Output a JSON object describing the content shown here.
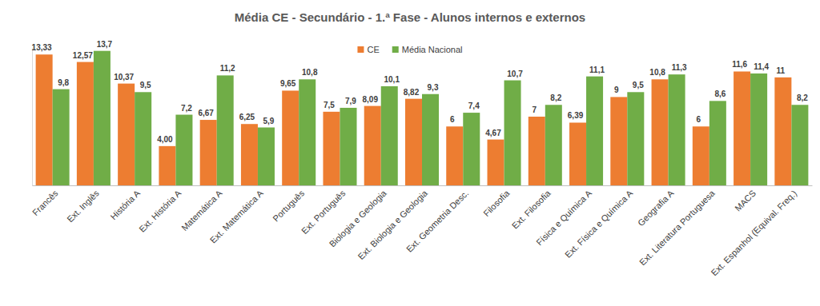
{
  "chart_data": {
    "type": "bar",
    "title": "Média CE - Secundário - 1.ª Fase - Alunos internos e externos",
    "categories": [
      "Francês",
      "Ext. Inglês",
      "História A",
      "Ext. História A",
      "Matemática A",
      "Ext. Matemática A",
      "Português",
      "Ext. Português",
      "Biologia e Geologia",
      "Ext. Biologia e Geologia",
      "Ext. Geometria Desc.",
      "Filosofia",
      "Ext. Filosofia",
      "Física e Química A",
      "Ext. Física e Química A",
      "Geografia A",
      "Ext. Literatura Portuguesa",
      "MACS",
      "Ext. Espanhol (Equival. Freq.)"
    ],
    "series": [
      {
        "name": "CE",
        "color": "#ED7D31",
        "values": [
          13.33,
          12.57,
          10.37,
          4.0,
          6.67,
          6.25,
          9.65,
          7.5,
          8.09,
          8.82,
          6,
          4.67,
          7,
          6.39,
          9,
          10.8,
          6,
          11.6,
          11
        ],
        "value_labels": [
          "13,33",
          "12,57",
          "10,37",
          "4,00",
          "6,67",
          "6,25",
          "9,65",
          "7,5",
          "8,09",
          "8,82",
          "6",
          "4,67",
          "7",
          "6,39",
          "9",
          "10,8",
          "6",
          "11,6",
          "11"
        ]
      },
      {
        "name": "Média Nacional",
        "color": "#70AD47",
        "values": [
          9.8,
          13.7,
          9.5,
          7.2,
          11.2,
          5.9,
          10.8,
          7.9,
          10.1,
          9.3,
          7.4,
          10.7,
          8.2,
          11.1,
          9.5,
          11.3,
          8.6,
          11.4,
          8.2
        ],
        "value_labels": [
          "9,8",
          "13,7",
          "9,5",
          "7,2",
          "11,2",
          "5,9",
          "10,8",
          "7,9",
          "10,1",
          "9,3",
          "7,4",
          "10,7",
          "8,2",
          "11,1",
          "9,5",
          "11,3",
          "8,6",
          "11,4",
          "8,2"
        ]
      }
    ],
    "ylim": [
      0,
      14
    ],
    "yticks": [],
    "data_labels": true,
    "tick_labels": "x",
    "legend": "top"
  }
}
